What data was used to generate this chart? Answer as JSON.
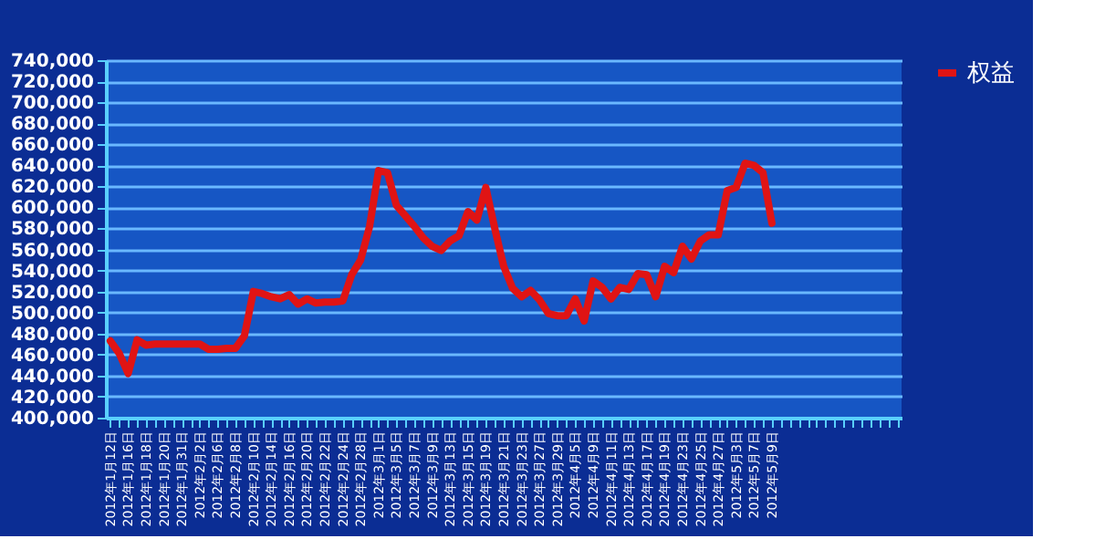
{
  "chart_data": {
    "type": "line",
    "categories": [
      "2012年1月12日",
      null,
      "2012年1月16日",
      null,
      "2012年1月18日",
      null,
      "2012年1月20日",
      null,
      "2012年1月31日",
      null,
      "2012年2月2日",
      null,
      "2012年2月6日",
      null,
      "2012年2月8日",
      null,
      "2012年2月10日",
      null,
      "2012年2月14日",
      null,
      "2012年2月16日",
      null,
      "2012年2月20日",
      null,
      "2012年2月22日",
      null,
      "2012年2月24日",
      null,
      "2012年2月28日",
      null,
      "2012年3月1日",
      null,
      "2012年3月5日",
      null,
      "2012年3月7日",
      null,
      "2012年3月9日",
      null,
      "2012年3月13日",
      null,
      "2012年3月15日",
      null,
      "2012年3月19日",
      null,
      "2012年3月21日",
      null,
      "2012年3月23日",
      null,
      "2012年3月27日",
      null,
      "2012年3月29日",
      null,
      "2012年4月5日",
      null,
      "2012年4月9日",
      null,
      "2012年4月11日",
      null,
      "2012年4月13日",
      null,
      "2012年4月17日",
      null,
      "2012年4月19日",
      null,
      "2012年4月23日",
      null,
      "2012年4月25日",
      null,
      "2012年4月27日",
      null,
      "2012年5月3日",
      null,
      "2012年5月7日",
      null,
      "2012年5月9日",
      null,
      null,
      null,
      null,
      null,
      null,
      null,
      null,
      null,
      null,
      null,
      null,
      null,
      null
    ],
    "series": [
      {
        "name": "权益",
        "color": "#e01414",
        "values": [
          473000,
          461000,
          442000,
          474000,
          469000,
          470000,
          470000,
          470000,
          470000,
          470000,
          470000,
          465000,
          465000,
          466000,
          466000,
          478000,
          520000,
          518000,
          515000,
          513000,
          517000,
          508000,
          513000,
          509000,
          510000,
          510000,
          511000,
          536000,
          550000,
          582000,
          635000,
          633000,
          602000,
          592000,
          582000,
          571000,
          563000,
          559000,
          568000,
          573000,
          596000,
          588000,
          619000,
          580000,
          544000,
          523000,
          515000,
          521000,
          512000,
          499000,
          497000,
          497000,
          513000,
          492000,
          530000,
          524000,
          513000,
          524000,
          522000,
          537000,
          536000,
          515000,
          544000,
          538000,
          563000,
          551000,
          568000,
          574000,
          574000,
          616000,
          619000,
          642000,
          640000,
          633000,
          585000,
          null,
          null,
          null,
          null,
          null,
          null,
          null,
          null,
          null,
          null,
          null,
          null,
          null,
          null
        ]
      }
    ],
    "ylim": [
      400000,
      740000
    ],
    "yticks": [
      {
        "value": 400000,
        "label": "400,000"
      },
      {
        "value": 420000,
        "label": "420,000"
      },
      {
        "value": 440000,
        "label": "440,000"
      },
      {
        "value": 460000,
        "label": "460,000"
      },
      {
        "value": 480000,
        "label": "480,000"
      },
      {
        "value": 500000,
        "label": "500,000"
      },
      {
        "value": 520000,
        "label": "520,000"
      },
      {
        "value": 540000,
        "label": "540,000"
      },
      {
        "value": 560000,
        "label": "560,000"
      },
      {
        "value": 580000,
        "label": "580,000"
      },
      {
        "value": 600000,
        "label": "600,000"
      },
      {
        "value": 620000,
        "label": "620,000"
      },
      {
        "value": 640000,
        "label": "640,000"
      },
      {
        "value": 660000,
        "label": "660,000"
      },
      {
        "value": 680000,
        "label": "680,000"
      },
      {
        "value": 700000,
        "label": "700,000"
      },
      {
        "value": 720000,
        "label": "720,000"
      },
      {
        "value": 740000,
        "label": "740,000"
      }
    ],
    "grid": "y",
    "legend": "right",
    "marker": "none",
    "line_style": "solid"
  }
}
